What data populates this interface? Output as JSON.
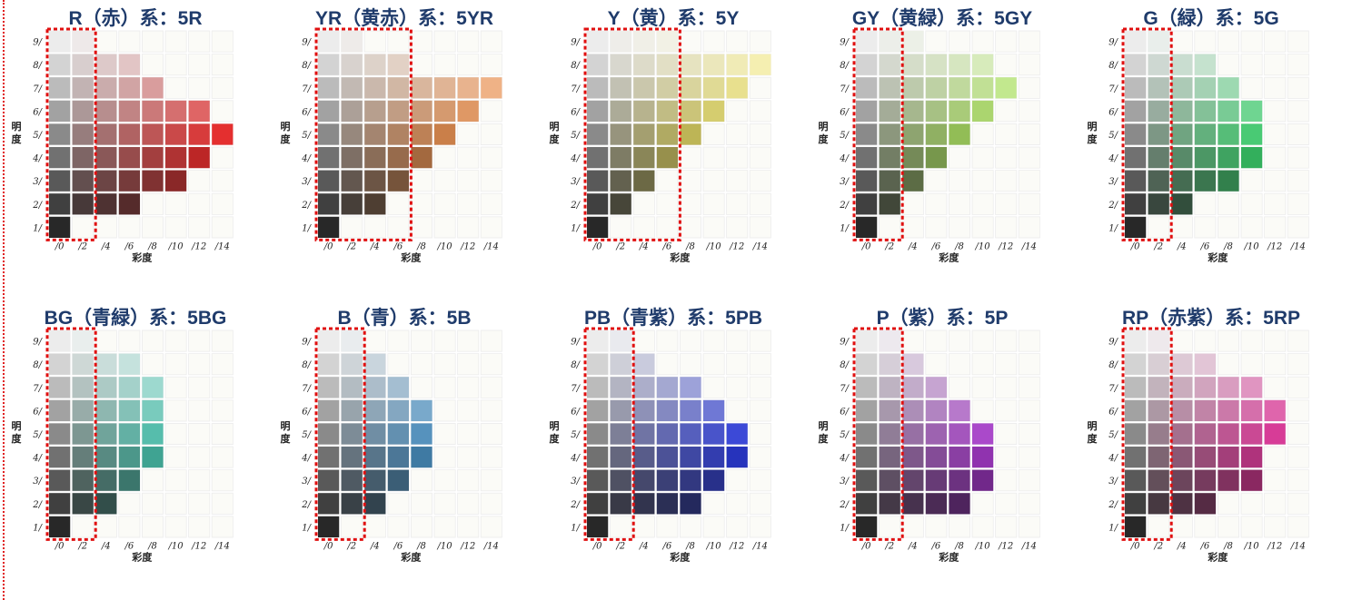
{
  "left_border_color": "#e02020",
  "axes": {
    "y_label": "明度",
    "x_label": "彩度",
    "y_ticks": [
      "9/",
      "8/",
      "7/",
      "6/",
      "5/",
      "4/",
      "3/",
      "2/",
      "1/"
    ],
    "x_ticks": [
      "/0",
      "/2",
      "/4",
      "/6",
      "/8",
      "/10",
      "/12",
      "/14"
    ]
  },
  "panels": [
    {
      "title": "R（赤）系：5R",
      "hue": 0,
      "chroma_max": {
        "9": 2,
        "8": 6,
        "7": 8,
        "6": 12,
        "5": 14,
        "4": 12,
        "3": 10,
        "2": 6,
        "1": 0
      },
      "highlight_cols": 2
    },
    {
      "title": "YR（黄赤）系：5YR",
      "hue": 25,
      "chroma_max": {
        "9": 2,
        "8": 6,
        "7": 14,
        "6": 12,
        "5": 10,
        "4": 8,
        "3": 6,
        "2": 4,
        "1": 0
      },
      "highlight_cols": 4
    },
    {
      "title": "Y（黄）系：5Y",
      "hue": 55,
      "chroma_max": {
        "9": 6,
        "8": 14,
        "7": 12,
        "6": 10,
        "5": 8,
        "4": 6,
        "3": 4,
        "2": 2,
        "1": 0
      },
      "highlight_cols": 4
    },
    {
      "title": "GY（黄緑）系：5GY",
      "hue": 85,
      "chroma_max": {
        "9": 4,
        "8": 10,
        "7": 12,
        "6": 10,
        "5": 8,
        "4": 6,
        "3": 4,
        "2": 2,
        "1": 0
      },
      "highlight_cols": 2
    },
    {
      "title": "G（緑）系：5G",
      "hue": 140,
      "chroma_max": {
        "9": 2,
        "8": 6,
        "7": 8,
        "6": 10,
        "5": 10,
        "4": 10,
        "3": 8,
        "2": 4,
        "1": 0
      },
      "highlight_cols": 2
    },
    {
      "title": "BG（青緑）系：5BG",
      "hue": 170,
      "chroma_max": {
        "9": 2,
        "8": 6,
        "7": 8,
        "6": 8,
        "5": 8,
        "4": 8,
        "3": 6,
        "2": 4,
        "1": 0
      },
      "highlight_cols": 2
    },
    {
      "title": "B（青）系：5B",
      "hue": 205,
      "chroma_max": {
        "9": 2,
        "8": 4,
        "7": 6,
        "6": 8,
        "5": 8,
        "4": 8,
        "3": 6,
        "2": 4,
        "1": 0
      },
      "highlight_cols": 2
    },
    {
      "title": "PB（青紫）系：5PB",
      "hue": 235,
      "chroma_max": {
        "9": 2,
        "8": 4,
        "7": 8,
        "6": 10,
        "5": 12,
        "4": 12,
        "3": 10,
        "2": 8,
        "1": 0
      },
      "highlight_cols": 2
    },
    {
      "title": "P（紫）系：5P",
      "hue": 285,
      "chroma_max": {
        "9": 2,
        "8": 4,
        "7": 6,
        "6": 8,
        "5": 10,
        "4": 10,
        "3": 10,
        "2": 8,
        "1": 0
      },
      "highlight_cols": 2
    },
    {
      "title": "RP（赤紫）系：5RP",
      "hue": 325,
      "chroma_max": {
        "9": 2,
        "8": 6,
        "7": 10,
        "6": 12,
        "5": 12,
        "4": 10,
        "3": 10,
        "2": 6,
        "1": 0
      },
      "highlight_cols": 2
    }
  ]
}
